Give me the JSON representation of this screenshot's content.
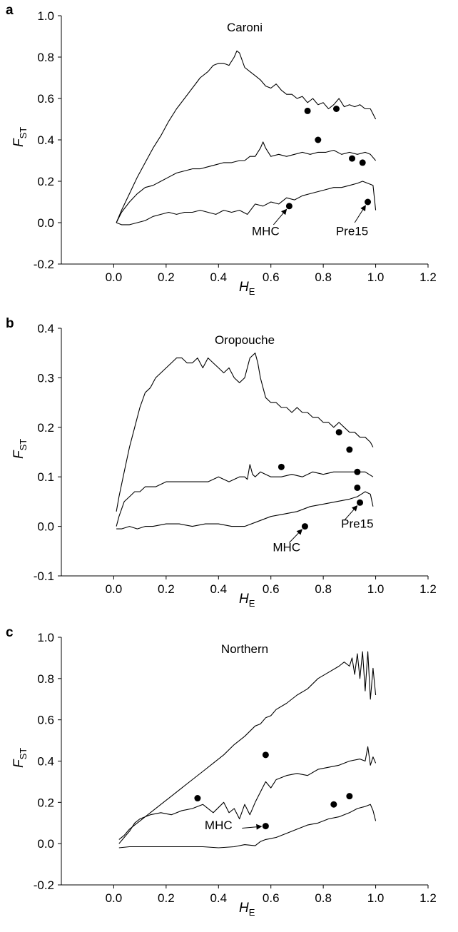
{
  "chart_data": [
    {
      "type": "scatter",
      "panel_label": "a",
      "title": "Caroni",
      "xlabel": "H",
      "xlabel_sub": "E",
      "ylabel": "F",
      "ylabel_sub": "ST",
      "xlim": [
        -0.2,
        1.2
      ],
      "ylim": [
        -0.2,
        1.0
      ],
      "xticks": [
        "0.0",
        "0.2",
        "0.4",
        "0.6",
        "0.8",
        "1.0",
        "1.2"
      ],
      "yticks": [
        "-0.2",
        "0.0",
        "0.2",
        "0.4",
        "0.6",
        "0.8",
        "1.0"
      ],
      "xtick_values": [
        0,
        0.2,
        0.4,
        0.6,
        0.8,
        1.0,
        1.2
      ],
      "ytick_values": [
        -0.2,
        0,
        0.2,
        0.4,
        0.6,
        0.8,
        1.0
      ],
      "grid": false,
      "lines": [
        {
          "role": "upper",
          "x": [
            0.01,
            0.03,
            0.06,
            0.09,
            0.12,
            0.15,
            0.18,
            0.21,
            0.24,
            0.27,
            0.3,
            0.33,
            0.36,
            0.38,
            0.4,
            0.42,
            0.44,
            0.46,
            0.47,
            0.48,
            0.5,
            0.52,
            0.54,
            0.56,
            0.58,
            0.6,
            0.62,
            0.64,
            0.66,
            0.68,
            0.7,
            0.72,
            0.74,
            0.76,
            0.78,
            0.8,
            0.82,
            0.84,
            0.86,
            0.88,
            0.9,
            0.92,
            0.94,
            0.96,
            0.98,
            1.0
          ],
          "y": [
            0.0,
            0.06,
            0.14,
            0.22,
            0.29,
            0.36,
            0.42,
            0.49,
            0.55,
            0.6,
            0.65,
            0.7,
            0.73,
            0.76,
            0.77,
            0.77,
            0.76,
            0.8,
            0.83,
            0.82,
            0.75,
            0.73,
            0.71,
            0.69,
            0.66,
            0.65,
            0.67,
            0.64,
            0.62,
            0.62,
            0.6,
            0.61,
            0.58,
            0.6,
            0.57,
            0.58,
            0.55,
            0.57,
            0.6,
            0.56,
            0.57,
            0.56,
            0.57,
            0.55,
            0.55,
            0.5
          ]
        },
        {
          "role": "median",
          "x": [
            0.01,
            0.03,
            0.06,
            0.09,
            0.12,
            0.15,
            0.18,
            0.21,
            0.24,
            0.27,
            0.3,
            0.33,
            0.36,
            0.39,
            0.42,
            0.45,
            0.48,
            0.5,
            0.52,
            0.54,
            0.56,
            0.57,
            0.58,
            0.6,
            0.63,
            0.66,
            0.69,
            0.72,
            0.75,
            0.78,
            0.81,
            0.84,
            0.87,
            0.9,
            0.93,
            0.96,
            0.98,
            1.0
          ],
          "y": [
            0.0,
            0.05,
            0.1,
            0.14,
            0.17,
            0.18,
            0.2,
            0.22,
            0.24,
            0.25,
            0.26,
            0.26,
            0.27,
            0.28,
            0.29,
            0.29,
            0.3,
            0.3,
            0.32,
            0.32,
            0.36,
            0.39,
            0.36,
            0.32,
            0.33,
            0.32,
            0.33,
            0.34,
            0.33,
            0.34,
            0.34,
            0.35,
            0.33,
            0.34,
            0.33,
            0.34,
            0.33,
            0.3
          ]
        },
        {
          "role": "lower",
          "x": [
            0.01,
            0.03,
            0.06,
            0.09,
            0.12,
            0.15,
            0.18,
            0.21,
            0.24,
            0.27,
            0.3,
            0.33,
            0.36,
            0.39,
            0.42,
            0.45,
            0.48,
            0.51,
            0.54,
            0.57,
            0.6,
            0.63,
            0.66,
            0.69,
            0.72,
            0.75,
            0.78,
            0.81,
            0.84,
            0.87,
            0.9,
            0.93,
            0.95,
            0.97,
            0.99,
            1.0
          ],
          "y": [
            0.0,
            -0.01,
            -0.01,
            0.0,
            0.01,
            0.03,
            0.04,
            0.05,
            0.04,
            0.05,
            0.05,
            0.06,
            0.05,
            0.04,
            0.06,
            0.05,
            0.06,
            0.04,
            0.09,
            0.08,
            0.1,
            0.09,
            0.12,
            0.11,
            0.13,
            0.14,
            0.15,
            0.16,
            0.17,
            0.17,
            0.18,
            0.19,
            0.2,
            0.19,
            0.18,
            0.06
          ]
        }
      ],
      "points": [
        {
          "x": 0.74,
          "y": 0.54
        },
        {
          "x": 0.85,
          "y": 0.55
        },
        {
          "x": 0.78,
          "y": 0.4
        },
        {
          "x": 0.91,
          "y": 0.31
        },
        {
          "x": 0.95,
          "y": 0.29
        },
        {
          "x": 0.67,
          "y": 0.08
        },
        {
          "x": 0.97,
          "y": 0.1
        }
      ],
      "annotations": [
        {
          "text": "MHC",
          "point": {
            "x": 0.67,
            "y": 0.08
          },
          "label_at": {
            "x": 0.58,
            "y": -0.06
          },
          "arrow_from": {
            "x": 0.61,
            "y": -0.01
          }
        },
        {
          "text": "Pre15",
          "point": {
            "x": 0.97,
            "y": 0.1
          },
          "label_at": {
            "x": 0.91,
            "y": -0.06
          },
          "arrow_from": {
            "x": 0.92,
            "y": 0.0
          }
        }
      ]
    },
    {
      "type": "scatter",
      "panel_label": "b",
      "title": "Oropouche",
      "xlabel": "H",
      "xlabel_sub": "E",
      "ylabel": "F",
      "ylabel_sub": "ST",
      "xlim": [
        -0.2,
        1.2
      ],
      "ylim": [
        -0.1,
        0.4
      ],
      "xticks": [
        "0.0",
        "0.2",
        "0.4",
        "0.6",
        "0.8",
        "1.0",
        "1.2"
      ],
      "yticks": [
        "-0.1",
        "0.0",
        "0.1",
        "0.2",
        "0.3",
        "0.4"
      ],
      "xtick_values": [
        0,
        0.2,
        0.4,
        0.6,
        0.8,
        1.0,
        1.2
      ],
      "ytick_values": [
        -0.1,
        0,
        0.1,
        0.2,
        0.3,
        0.4
      ],
      "grid": false,
      "lines": [
        {
          "role": "upper",
          "x": [
            0.01,
            0.02,
            0.04,
            0.06,
            0.08,
            0.1,
            0.12,
            0.14,
            0.16,
            0.18,
            0.2,
            0.22,
            0.24,
            0.26,
            0.28,
            0.3,
            0.32,
            0.34,
            0.36,
            0.38,
            0.4,
            0.42,
            0.44,
            0.46,
            0.48,
            0.5,
            0.52,
            0.54,
            0.55,
            0.56,
            0.58,
            0.6,
            0.62,
            0.64,
            0.66,
            0.68,
            0.7,
            0.72,
            0.74,
            0.76,
            0.78,
            0.8,
            0.82,
            0.84,
            0.86,
            0.88,
            0.9,
            0.92,
            0.94,
            0.96,
            0.98,
            0.99
          ],
          "y": [
            0.03,
            0.06,
            0.11,
            0.16,
            0.2,
            0.24,
            0.27,
            0.28,
            0.3,
            0.31,
            0.32,
            0.33,
            0.34,
            0.34,
            0.33,
            0.33,
            0.34,
            0.32,
            0.34,
            0.33,
            0.32,
            0.31,
            0.32,
            0.3,
            0.29,
            0.3,
            0.34,
            0.35,
            0.33,
            0.3,
            0.26,
            0.25,
            0.25,
            0.24,
            0.24,
            0.23,
            0.24,
            0.23,
            0.23,
            0.22,
            0.22,
            0.21,
            0.21,
            0.2,
            0.21,
            0.2,
            0.19,
            0.19,
            0.18,
            0.18,
            0.17,
            0.16
          ]
        },
        {
          "role": "median",
          "x": [
            0.01,
            0.02,
            0.04,
            0.06,
            0.08,
            0.1,
            0.12,
            0.14,
            0.16,
            0.18,
            0.2,
            0.24,
            0.28,
            0.32,
            0.36,
            0.4,
            0.44,
            0.48,
            0.5,
            0.51,
            0.52,
            0.53,
            0.54,
            0.56,
            0.6,
            0.64,
            0.68,
            0.72,
            0.76,
            0.8,
            0.84,
            0.88,
            0.92,
            0.96,
            0.99
          ],
          "y": [
            0.0,
            0.02,
            0.05,
            0.06,
            0.07,
            0.07,
            0.08,
            0.08,
            0.08,
            0.085,
            0.09,
            0.09,
            0.09,
            0.09,
            0.09,
            0.1,
            0.09,
            0.1,
            0.1,
            0.095,
            0.125,
            0.105,
            0.1,
            0.11,
            0.1,
            0.1,
            0.105,
            0.1,
            0.11,
            0.105,
            0.11,
            0.11,
            0.11,
            0.11,
            0.1
          ]
        },
        {
          "role": "lower",
          "x": [
            0.01,
            0.03,
            0.06,
            0.09,
            0.12,
            0.15,
            0.2,
            0.25,
            0.3,
            0.35,
            0.4,
            0.45,
            0.5,
            0.55,
            0.6,
            0.65,
            0.7,
            0.75,
            0.8,
            0.85,
            0.9,
            0.93,
            0.96,
            0.98,
            0.99
          ],
          "y": [
            -0.005,
            -0.005,
            0.0,
            -0.005,
            0.0,
            0.0,
            0.005,
            0.005,
            0.0,
            0.005,
            0.005,
            0.0,
            0.0,
            0.01,
            0.02,
            0.025,
            0.03,
            0.04,
            0.045,
            0.05,
            0.055,
            0.06,
            0.07,
            0.065,
            0.04
          ]
        }
      ],
      "points": [
        {
          "x": 0.86,
          "y": 0.19
        },
        {
          "x": 0.9,
          "y": 0.155
        },
        {
          "x": 0.64,
          "y": 0.12
        },
        {
          "x": 0.93,
          "y": 0.11
        },
        {
          "x": 0.93,
          "y": 0.078
        },
        {
          "x": 0.94,
          "y": 0.048
        },
        {
          "x": 0.73,
          "y": 0.0
        }
      ],
      "annotations": [
        {
          "text": "MHC",
          "point": {
            "x": 0.73,
            "y": 0.0
          },
          "label_at": {
            "x": 0.66,
            "y": -0.05
          },
          "arrow_from": {
            "x": 0.67,
            "y": -0.033
          }
        },
        {
          "text": "Pre15",
          "point": {
            "x": 0.94,
            "y": 0.048
          },
          "label_at": {
            "x": 0.93,
            "y": -0.003
          },
          "arrow_from": {
            "x": 0.88,
            "y": 0.012
          }
        }
      ]
    },
    {
      "type": "scatter",
      "panel_label": "c",
      "title": "Northern",
      "xlabel": "H",
      "xlabel_sub": "E",
      "ylabel": "F",
      "ylabel_sub": "ST",
      "xlim": [
        -0.2,
        1.2
      ],
      "ylim": [
        -0.2,
        1.0
      ],
      "xticks": [
        "0.0",
        "0.2",
        "0.4",
        "0.6",
        "0.8",
        "1.0",
        "1.2"
      ],
      "yticks": [
        "-0.2",
        "0.0",
        "0.2",
        "0.4",
        "0.6",
        "0.8",
        "1.0"
      ],
      "xtick_values": [
        0,
        0.2,
        0.4,
        0.6,
        0.8,
        1.0,
        1.2
      ],
      "ytick_values": [
        -0.2,
        0,
        0.2,
        0.4,
        0.6,
        0.8,
        1.0
      ],
      "grid": false,
      "lines": [
        {
          "role": "upper",
          "x": [
            0.02,
            0.04,
            0.06,
            0.08,
            0.1,
            0.14,
            0.18,
            0.22,
            0.26,
            0.3,
            0.34,
            0.38,
            0.42,
            0.46,
            0.5,
            0.54,
            0.56,
            0.58,
            0.6,
            0.62,
            0.66,
            0.7,
            0.74,
            0.78,
            0.82,
            0.86,
            0.88,
            0.9,
            0.91,
            0.92,
            0.93,
            0.94,
            0.95,
            0.96,
            0.97,
            0.98,
            0.99,
            1.0
          ],
          "y": [
            0.02,
            0.04,
            0.07,
            0.09,
            0.11,
            0.15,
            0.19,
            0.23,
            0.27,
            0.31,
            0.35,
            0.39,
            0.43,
            0.48,
            0.52,
            0.57,
            0.58,
            0.61,
            0.62,
            0.65,
            0.68,
            0.72,
            0.75,
            0.8,
            0.83,
            0.86,
            0.88,
            0.86,
            0.9,
            0.82,
            0.92,
            0.8,
            0.93,
            0.74,
            0.93,
            0.7,
            0.85,
            0.72
          ]
        },
        {
          "role": "median",
          "x": [
            0.02,
            0.04,
            0.06,
            0.08,
            0.1,
            0.14,
            0.18,
            0.22,
            0.26,
            0.3,
            0.34,
            0.38,
            0.42,
            0.44,
            0.46,
            0.48,
            0.5,
            0.52,
            0.54,
            0.56,
            0.58,
            0.6,
            0.62,
            0.66,
            0.7,
            0.74,
            0.78,
            0.82,
            0.86,
            0.9,
            0.94,
            0.96,
            0.97,
            0.98,
            0.99,
            1.0
          ],
          "y": [
            0.0,
            0.03,
            0.06,
            0.1,
            0.12,
            0.14,
            0.15,
            0.14,
            0.16,
            0.17,
            0.19,
            0.15,
            0.2,
            0.15,
            0.17,
            0.12,
            0.19,
            0.14,
            0.2,
            0.25,
            0.3,
            0.27,
            0.31,
            0.33,
            0.34,
            0.33,
            0.36,
            0.37,
            0.38,
            0.4,
            0.41,
            0.4,
            0.47,
            0.38,
            0.42,
            0.39
          ]
        },
        {
          "role": "lower",
          "x": [
            0.02,
            0.06,
            0.1,
            0.16,
            0.22,
            0.28,
            0.34,
            0.4,
            0.46,
            0.5,
            0.54,
            0.56,
            0.58,
            0.62,
            0.66,
            0.7,
            0.74,
            0.78,
            0.82,
            0.86,
            0.9,
            0.93,
            0.96,
            0.98,
            0.99,
            1.0
          ],
          "y": [
            -0.02,
            -0.015,
            -0.015,
            -0.015,
            -0.015,
            -0.015,
            -0.015,
            -0.02,
            -0.015,
            -0.005,
            -0.01,
            0.01,
            0.02,
            0.03,
            0.05,
            0.07,
            0.09,
            0.1,
            0.12,
            0.13,
            0.15,
            0.17,
            0.18,
            0.19,
            0.16,
            0.11
          ]
        }
      ],
      "points": [
        {
          "x": 0.32,
          "y": 0.22
        },
        {
          "x": 0.58,
          "y": 0.43
        },
        {
          "x": 0.84,
          "y": 0.19
        },
        {
          "x": 0.9,
          "y": 0.23
        },
        {
          "x": 0.58,
          "y": 0.085
        }
      ],
      "annotations": [
        {
          "text": "MHC",
          "point": {
            "x": 0.58,
            "y": 0.085
          },
          "label_at": {
            "x": 0.4,
            "y": 0.07
          },
          "arrow_from": {
            "x": 0.49,
            "y": 0.075
          }
        }
      ]
    }
  ]
}
